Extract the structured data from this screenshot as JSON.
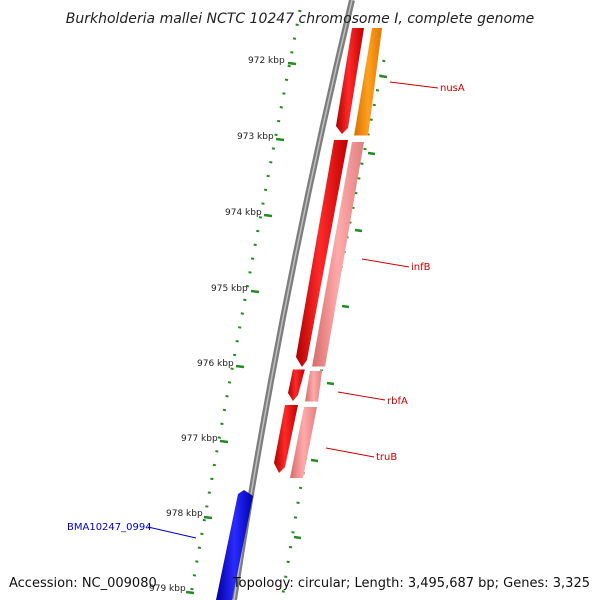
{
  "title": "Burkholderia mallei NCTC 10247 chromosome I, complete genome",
  "footer": {
    "accession": "Accession: NC_009080",
    "topology": "Topology: circular; Length: 3,495,687 bp; Genes: 3,325"
  },
  "ticks": [
    "972 kbp",
    "973 kbp",
    "974 kbp",
    "975 kbp",
    "976 kbp",
    "977 kbp",
    "978 kbp",
    "979 kbp"
  ],
  "genes": [
    {
      "name": "nusA",
      "color": "#cc0000"
    },
    {
      "name": "infB",
      "color": "#cc0000"
    },
    {
      "name": "rbfA",
      "color": "#cc0000"
    },
    {
      "name": "truB",
      "color": "#cc0000"
    },
    {
      "name": "BMA10247_0994",
      "color": "#0000cc"
    }
  ],
  "colors": {
    "backbone": "#808080",
    "gene_red": "#ff0000",
    "gene_pink": "#f08080",
    "gene_orange": "#ff8c00",
    "gene_blue": "#0000ff",
    "tick_green": "#228b22"
  }
}
